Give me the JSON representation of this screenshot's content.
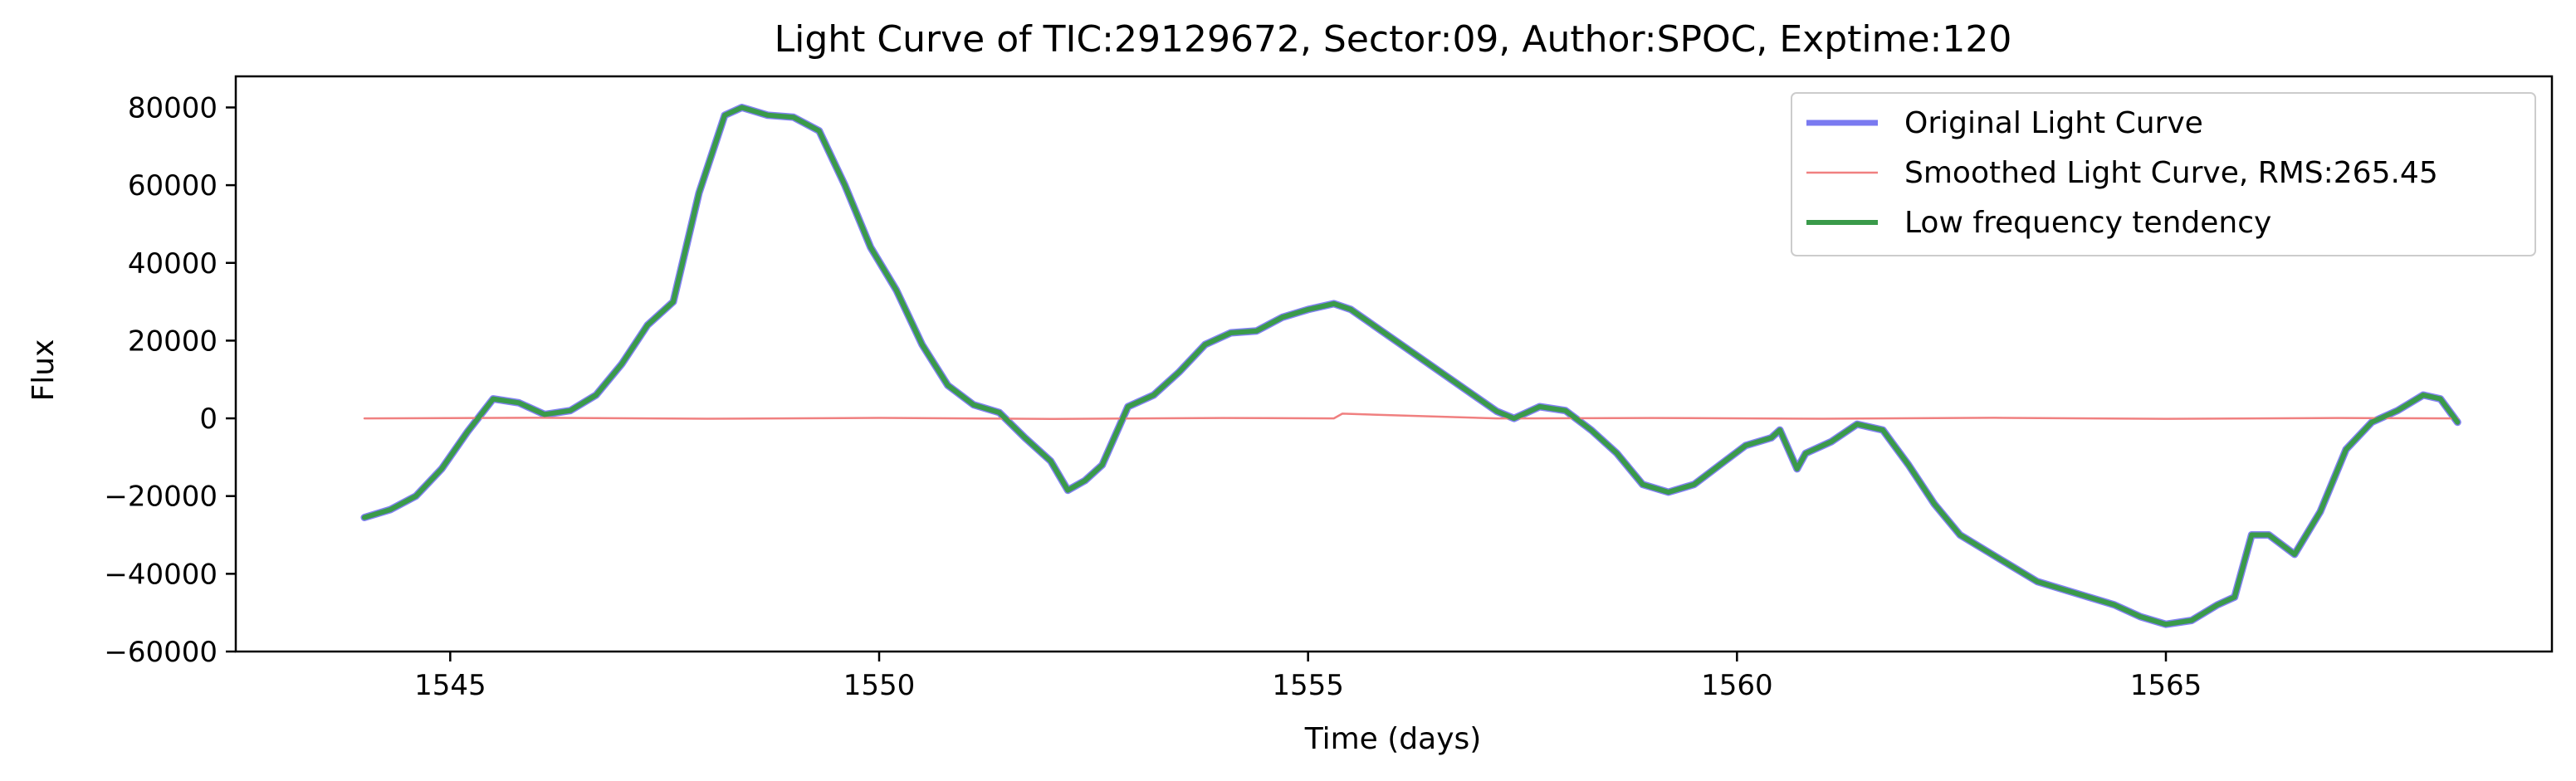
{
  "chart_data": {
    "type": "line",
    "title": "Light Curve of TIC:29129672, Sector:09, Author:SPOC, Exptime:120",
    "xlabel": "Time (days)",
    "ylabel": "Flux",
    "xlim": [
      1542.5,
      1569.5
    ],
    "ylim": [
      -60000,
      88000
    ],
    "xticks": [
      1545,
      1550,
      1555,
      1560,
      1565
    ],
    "yticks": [
      -60000,
      -40000,
      -20000,
      0,
      20000,
      40000,
      60000,
      80000
    ],
    "grid": false,
    "legend_position": "top-right",
    "legend": [
      {
        "label": "Original Light Curve",
        "color": "#7a7af0"
      },
      {
        "label": "Smoothed Light Curve, RMS:265.45",
        "color": "#f08080"
      },
      {
        "label": "Low frequency tendency",
        "color": "#3a9a4a"
      }
    ],
    "series": [
      {
        "name": "Original Light Curve",
        "color": "#7a7af0",
        "x": [
          1544.0,
          1544.3,
          1544.6,
          1544.9,
          1545.2,
          1545.5,
          1545.8,
          1546.1,
          1546.4,
          1546.7,
          1547.0,
          1547.3,
          1547.6,
          1547.9,
          1548.2,
          1548.4,
          1548.7,
          1549.0,
          1549.3,
          1549.6,
          1549.9,
          1550.2,
          1550.5,
          1550.8,
          1551.1,
          1551.4,
          1551.7,
          1552.0,
          1552.2,
          1552.4,
          1552.6,
          1552.9,
          1553.2,
          1553.5,
          1553.8,
          1554.1,
          1554.4,
          1554.7,
          1555.0,
          1555.3,
          1555.5,
          1557.2,
          1557.4,
          1557.7,
          1558.0,
          1558.3,
          1558.6,
          1558.9,
          1559.2,
          1559.5,
          1559.8,
          1560.1,
          1560.4,
          1560.5,
          1560.7,
          1560.8,
          1561.1,
          1561.4,
          1561.7,
          1562.0,
          1562.3,
          1562.6,
          1562.9,
          1563.2,
          1563.5,
          1563.8,
          1564.1,
          1564.4,
          1564.7,
          1565.0,
          1565.3,
          1565.6,
          1565.8,
          1566.0,
          1566.2,
          1566.5,
          1566.8,
          1567.1,
          1567.4,
          1567.7,
          1568.0,
          1568.2,
          1568.4
        ],
        "y": [
          -25500,
          -23500,
          -20000,
          -13000,
          -3500,
          5000,
          4000,
          1000,
          2000,
          6000,
          14000,
          24000,
          30000,
          58000,
          78000,
          80000,
          78000,
          77500,
          74000,
          60000,
          44000,
          33000,
          19000,
          8500,
          3500,
          1500,
          -5000,
          -11000,
          -18500,
          -16000,
          -12000,
          3000,
          6000,
          12000,
          19000,
          22000,
          22500,
          26000,
          28000,
          29500,
          28000,
          1800,
          0,
          3000,
          2000,
          -3000,
          -9000,
          -17000,
          -19000,
          -17000,
          -12000,
          -7000,
          -5000,
          -3000,
          -13000,
          -9000,
          -6000,
          -1500,
          -3000,
          -12000,
          -22000,
          -30000,
          -34000,
          -38000,
          -42000,
          -44000,
          -46000,
          -48000,
          -51000,
          -53000,
          -52000,
          -48000,
          -46000,
          -30000,
          -30000,
          -35000,
          -24000,
          -8000,
          -1000,
          2000,
          6000,
          5000,
          -1000
        ]
      },
      {
        "name": "Smoothed Light Curve, RMS:265.45",
        "color": "#f08080",
        "x": [
          1544.0,
          1546.0,
          1548.0,
          1550.0,
          1552.0,
          1554.0,
          1555.3,
          1555.4,
          1557.2,
          1557.4,
          1559.0,
          1561.0,
          1563.0,
          1565.0,
          1567.0,
          1568.4
        ],
        "y": [
          0,
          150,
          -100,
          120,
          -150,
          100,
          0,
          1200,
          0,
          0,
          100,
          -100,
          150,
          -120,
          100,
          0
        ]
      },
      {
        "name": "Low frequency tendency",
        "color": "#3a9a4a",
        "x": [
          1544.0,
          1544.3,
          1544.6,
          1544.9,
          1545.2,
          1545.5,
          1545.8,
          1546.1,
          1546.4,
          1546.7,
          1547.0,
          1547.3,
          1547.6,
          1547.9,
          1548.2,
          1548.4,
          1548.7,
          1549.0,
          1549.3,
          1549.6,
          1549.9,
          1550.2,
          1550.5,
          1550.8,
          1551.1,
          1551.4,
          1551.7,
          1552.0,
          1552.2,
          1552.4,
          1552.6,
          1552.9,
          1553.2,
          1553.5,
          1553.8,
          1554.1,
          1554.4,
          1554.7,
          1555.0,
          1555.3,
          1555.5,
          1557.2,
          1557.4,
          1557.7,
          1558.0,
          1558.3,
          1558.6,
          1558.9,
          1559.2,
          1559.5,
          1559.8,
          1560.1,
          1560.4,
          1560.5,
          1560.7,
          1560.8,
          1561.1,
          1561.4,
          1561.7,
          1562.0,
          1562.3,
          1562.6,
          1562.9,
          1563.2,
          1563.5,
          1563.8,
          1564.1,
          1564.4,
          1564.7,
          1565.0,
          1565.3,
          1565.6,
          1565.8,
          1566.0,
          1566.2,
          1566.5,
          1566.8,
          1567.1,
          1567.4,
          1567.7,
          1568.0,
          1568.2,
          1568.4
        ],
        "y": [
          -25500,
          -23500,
          -20000,
          -13000,
          -3500,
          5000,
          4000,
          1000,
          2000,
          6000,
          14000,
          24000,
          30000,
          58000,
          78000,
          80000,
          78000,
          77500,
          74000,
          60000,
          44000,
          33000,
          19000,
          8500,
          3500,
          1500,
          -5000,
          -11000,
          -18500,
          -16000,
          -12000,
          3000,
          6000,
          12000,
          19000,
          22000,
          22500,
          26000,
          28000,
          29500,
          28000,
          1800,
          0,
          3000,
          2000,
          -3000,
          -9000,
          -17000,
          -19000,
          -17000,
          -12000,
          -7000,
          -5000,
          -3000,
          -13000,
          -9000,
          -6000,
          -1500,
          -3000,
          -12000,
          -22000,
          -30000,
          -34000,
          -38000,
          -42000,
          -44000,
          -46000,
          -48000,
          -51000,
          -53000,
          -52000,
          -48000,
          -46000,
          -30000,
          -30000,
          -35000,
          -24000,
          -8000,
          -1000,
          2000,
          6000,
          5000,
          -1000
        ]
      }
    ]
  }
}
